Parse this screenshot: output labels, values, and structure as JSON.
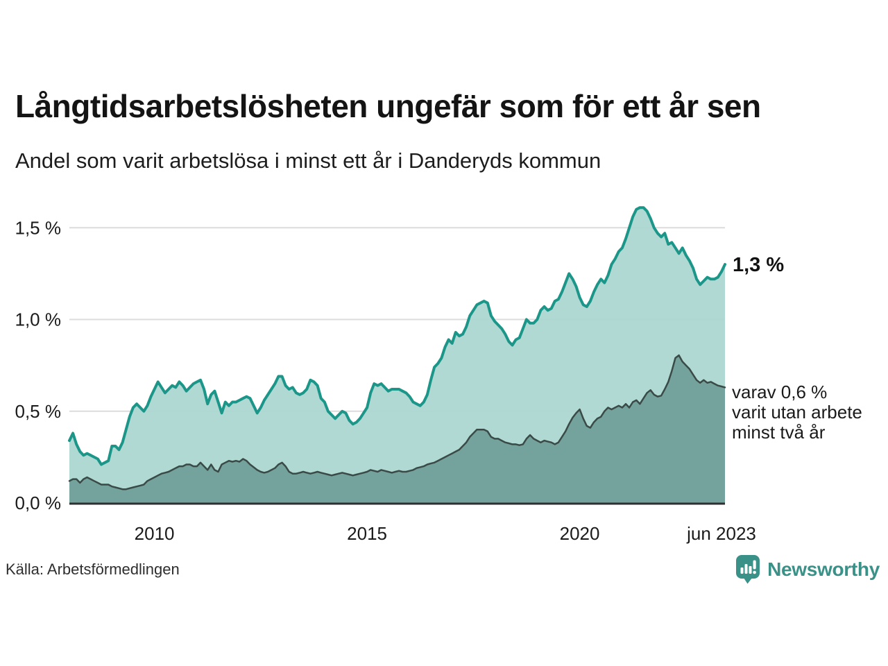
{
  "header": {
    "title": "Långtidsarbetslösheten ungefär som för ett år sen",
    "subtitle": "Andel som varit arbetslösa i minst ett år i Danderyds kommun"
  },
  "annotations": {
    "series1_end_value": "1,3 %",
    "series2_label": "varav 0,6 %\nvarit utan arbete\nminst två år"
  },
  "source": {
    "label": "Källa: Arbetsförmedlingen"
  },
  "branding": {
    "name": "Newsworthy",
    "icon": "newsworthy-bubble-bar-chart-icon",
    "color": "#3a9188"
  },
  "chart_data": {
    "type": "area",
    "title": "Långtidsarbetslösheten ungefär som för ett år sen",
    "subtitle": "Andel som varit arbetslösa i minst ett år i Danderyds kommun",
    "unit": "%",
    "x_start_month": "2008-01",
    "x_end_month": "2023-06",
    "points_per_series": 186,
    "ylim": [
      0,
      1.65
    ],
    "grid": "horizontal",
    "grid_color": "#dcdcdc",
    "axis_color": "#2f2f2f",
    "y_ticks": [
      {
        "label": "0,0 %",
        "value": 0
      },
      {
        "label": "0,5 %",
        "value": 0.5
      },
      {
        "label": "1,0 %",
        "value": 1.0
      },
      {
        "label": "1,5 %",
        "value": 1.5
      }
    ],
    "x_ticks": [
      {
        "label": "2010",
        "index": 24
      },
      {
        "label": "2015",
        "index": 84
      },
      {
        "label": "2020",
        "index": 144
      },
      {
        "label": "jun 2023",
        "index": 185
      }
    ],
    "series": [
      {
        "name": "Andel arbetslösa minst ett år",
        "line_color": "#1b9689",
        "fill_color": "#a9d6d0",
        "end_label": "1,3 %",
        "values": [
          0.34,
          0.38,
          0.32,
          0.28,
          0.26,
          0.27,
          0.26,
          0.25,
          0.24,
          0.21,
          0.22,
          0.23,
          0.31,
          0.31,
          0.29,
          0.33,
          0.4,
          0.47,
          0.52,
          0.54,
          0.52,
          0.5,
          0.53,
          0.58,
          0.62,
          0.66,
          0.63,
          0.6,
          0.62,
          0.64,
          0.63,
          0.66,
          0.64,
          0.61,
          0.63,
          0.65,
          0.66,
          0.67,
          0.62,
          0.54,
          0.59,
          0.61,
          0.55,
          0.49,
          0.55,
          0.53,
          0.55,
          0.55,
          0.56,
          0.57,
          0.58,
          0.57,
          0.53,
          0.49,
          0.52,
          0.56,
          0.59,
          0.62,
          0.65,
          0.69,
          0.69,
          0.64,
          0.62,
          0.63,
          0.6,
          0.59,
          0.6,
          0.62,
          0.67,
          0.66,
          0.64,
          0.57,
          0.55,
          0.5,
          0.48,
          0.46,
          0.48,
          0.5,
          0.49,
          0.45,
          0.43,
          0.44,
          0.46,
          0.49,
          0.52,
          0.6,
          0.65,
          0.64,
          0.65,
          0.63,
          0.61,
          0.62,
          0.62,
          0.62,
          0.61,
          0.6,
          0.58,
          0.55,
          0.54,
          0.53,
          0.55,
          0.59,
          0.67,
          0.74,
          0.76,
          0.79,
          0.85,
          0.89,
          0.87,
          0.93,
          0.91,
          0.92,
          0.96,
          1.02,
          1.05,
          1.08,
          1.09,
          1.1,
          1.09,
          1.02,
          0.99,
          0.97,
          0.95,
          0.92,
          0.88,
          0.86,
          0.89,
          0.9,
          0.95,
          1.0,
          0.98,
          0.98,
          1.0,
          1.05,
          1.07,
          1.05,
          1.06,
          1.1,
          1.11,
          1.15,
          1.2,
          1.25,
          1.22,
          1.18,
          1.12,
          1.08,
          1.07,
          1.1,
          1.15,
          1.19,
          1.22,
          1.2,
          1.24,
          1.3,
          1.33,
          1.37,
          1.39,
          1.44,
          1.5,
          1.56,
          1.6,
          1.61,
          1.61,
          1.59,
          1.55,
          1.5,
          1.47,
          1.45,
          1.47,
          1.41,
          1.42,
          1.39,
          1.36,
          1.39,
          1.35,
          1.32,
          1.28,
          1.22,
          1.19,
          1.21,
          1.23,
          1.22,
          1.22,
          1.23,
          1.26,
          1.3
        ]
      },
      {
        "name": "varav utan arbete minst två år",
        "line_color": "#3a4a47",
        "fill_color": "#6f9d97",
        "end_label": "varav 0,6 % varit utan arbete minst två år",
        "values": [
          0.12,
          0.13,
          0.13,
          0.11,
          0.13,
          0.14,
          0.13,
          0.12,
          0.11,
          0.1,
          0.1,
          0.1,
          0.09,
          0.085,
          0.08,
          0.075,
          0.075,
          0.08,
          0.085,
          0.09,
          0.095,
          0.1,
          0.12,
          0.13,
          0.14,
          0.15,
          0.16,
          0.165,
          0.17,
          0.18,
          0.19,
          0.2,
          0.2,
          0.21,
          0.21,
          0.2,
          0.2,
          0.22,
          0.2,
          0.18,
          0.21,
          0.18,
          0.17,
          0.21,
          0.22,
          0.23,
          0.225,
          0.23,
          0.225,
          0.24,
          0.23,
          0.21,
          0.195,
          0.18,
          0.17,
          0.165,
          0.17,
          0.18,
          0.19,
          0.21,
          0.22,
          0.2,
          0.17,
          0.16,
          0.16,
          0.165,
          0.17,
          0.165,
          0.16,
          0.165,
          0.17,
          0.165,
          0.16,
          0.155,
          0.15,
          0.155,
          0.16,
          0.165,
          0.16,
          0.155,
          0.15,
          0.155,
          0.16,
          0.165,
          0.17,
          0.18,
          0.175,
          0.17,
          0.18,
          0.175,
          0.17,
          0.165,
          0.17,
          0.175,
          0.17,
          0.17,
          0.175,
          0.18,
          0.19,
          0.195,
          0.2,
          0.21,
          0.215,
          0.22,
          0.23,
          0.24,
          0.25,
          0.26,
          0.27,
          0.28,
          0.29,
          0.31,
          0.33,
          0.36,
          0.38,
          0.4,
          0.4,
          0.4,
          0.39,
          0.36,
          0.35,
          0.35,
          0.34,
          0.33,
          0.325,
          0.32,
          0.32,
          0.315,
          0.32,
          0.35,
          0.37,
          0.35,
          0.34,
          0.33,
          0.34,
          0.335,
          0.33,
          0.32,
          0.33,
          0.36,
          0.39,
          0.43,
          0.465,
          0.49,
          0.51,
          0.46,
          0.42,
          0.41,
          0.44,
          0.46,
          0.47,
          0.5,
          0.52,
          0.51,
          0.52,
          0.53,
          0.52,
          0.54,
          0.52,
          0.55,
          0.56,
          0.54,
          0.57,
          0.6,
          0.615,
          0.59,
          0.58,
          0.585,
          0.62,
          0.66,
          0.72,
          0.79,
          0.805,
          0.77,
          0.75,
          0.73,
          0.7,
          0.67,
          0.655,
          0.67,
          0.655,
          0.66,
          0.65,
          0.64,
          0.635,
          0.63
        ]
      }
    ]
  }
}
